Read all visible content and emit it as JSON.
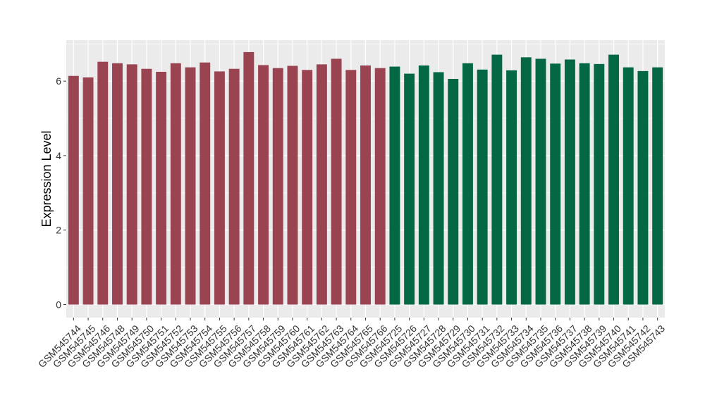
{
  "chart_data": {
    "type": "bar",
    "title": "",
    "xlabel": "",
    "ylabel": "Expression Level",
    "ylim": [
      -0.35,
      7.1
    ],
    "yticks": [
      0,
      2,
      4,
      6
    ],
    "grid": true,
    "legend": "none",
    "colors": {
      "group_1": "#9a4452",
      "group_2": "#036843",
      "panel_background": "#ebebeb",
      "gridline": "#ffffff"
    },
    "categories": [
      "GSM545744",
      "GSM545745",
      "GSM545746",
      "GSM545748",
      "GSM545749",
      "GSM545750",
      "GSM545751",
      "GSM545752",
      "GSM545753",
      "GSM545754",
      "GSM545755",
      "GSM545756",
      "GSM545757",
      "GSM545758",
      "GSM545759",
      "GSM545760",
      "GSM545761",
      "GSM545762",
      "GSM545763",
      "GSM545764",
      "GSM545765",
      "GSM545766",
      "GSM545725",
      "GSM545726",
      "GSM545727",
      "GSM545728",
      "GSM545729",
      "GSM545730",
      "GSM545731",
      "GSM545732",
      "GSM545733",
      "GSM545734",
      "GSM545735",
      "GSM545736",
      "GSM545737",
      "GSM545738",
      "GSM545739",
      "GSM545740",
      "GSM545741",
      "GSM545742",
      "GSM545743"
    ],
    "values": [
      6.14,
      6.1,
      6.52,
      6.48,
      6.45,
      6.33,
      6.25,
      6.48,
      6.37,
      6.5,
      6.26,
      6.33,
      6.78,
      6.43,
      6.35,
      6.41,
      6.3,
      6.45,
      6.6,
      6.3,
      6.42,
      6.35,
      6.39,
      6.2,
      6.42,
      6.24,
      6.06,
      6.48,
      6.31,
      6.71,
      6.29,
      6.64,
      6.6,
      6.47,
      6.58,
      6.48,
      6.46,
      6.71,
      6.37,
      6.27,
      6.37
    ],
    "groups": [
      1,
      1,
      1,
      1,
      1,
      1,
      1,
      1,
      1,
      1,
      1,
      1,
      1,
      1,
      1,
      1,
      1,
      1,
      1,
      1,
      1,
      1,
      2,
      2,
      2,
      2,
      2,
      2,
      2,
      2,
      2,
      2,
      2,
      2,
      2,
      2,
      2,
      2,
      2,
      2,
      2
    ]
  }
}
